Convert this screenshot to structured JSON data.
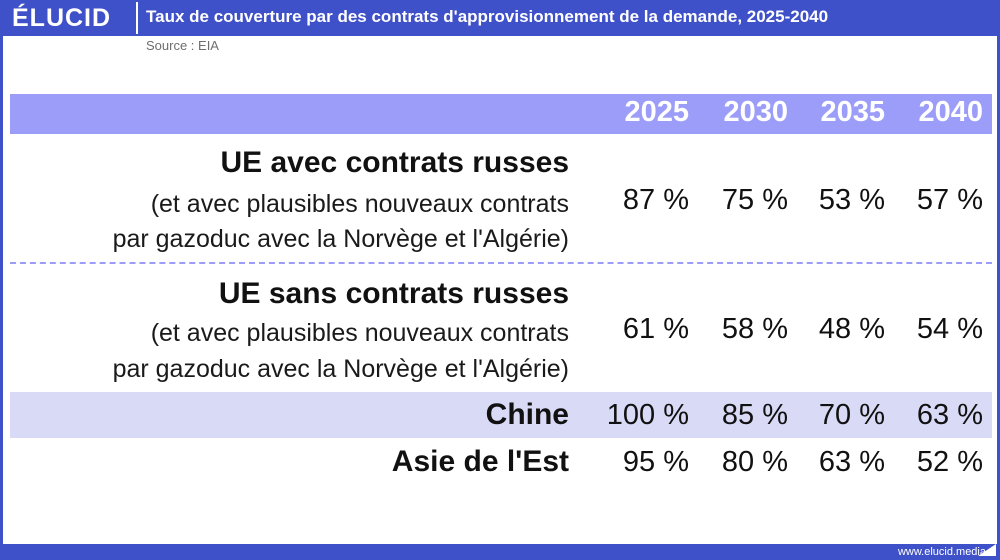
{
  "header": {
    "logo": "ÉLUCID",
    "title": "Taux de couverture par des contrats d'approvisionnement de la demande, 2025-2040"
  },
  "source": "Source : EIA",
  "footer": {
    "url": "www.elucid.media"
  },
  "chart_data": {
    "type": "table",
    "columns": [
      "2025",
      "2030",
      "2035",
      "2040"
    ],
    "rows": [
      {
        "label": "UE avec contrats russes",
        "sublabel_1": "(et avec plausibles nouveaux contrats",
        "sublabel_2": "par gazoduc avec la Norvège et l'Algérie)",
        "cells": [
          "87 %",
          "75 %",
          "53 %",
          "57 %"
        ],
        "values": [
          87,
          75,
          53,
          57
        ]
      },
      {
        "label": "UE sans contrats russes",
        "sublabel_1": "(et avec plausibles nouveaux contrats",
        "sublabel_2": "par gazoduc avec la Norvège et l'Algérie)",
        "cells": [
          "61 %",
          "58 %",
          "48 %",
          "54 %"
        ],
        "values": [
          61,
          58,
          48,
          54
        ]
      },
      {
        "label": "Chine",
        "cells": [
          "100 %",
          "85 %",
          "70 %",
          "63 %"
        ],
        "values": [
          100,
          85,
          70,
          63
        ]
      },
      {
        "label": "Asie de l'Est",
        "cells": [
          "95 %",
          "80 %",
          "63 %",
          "52 %"
        ],
        "values": [
          95,
          80,
          63,
          52
        ]
      }
    ]
  },
  "colors": {
    "brand": "#3f51c9",
    "header_band": "#9b9df9",
    "highlight_band": "#d9daf6"
  }
}
